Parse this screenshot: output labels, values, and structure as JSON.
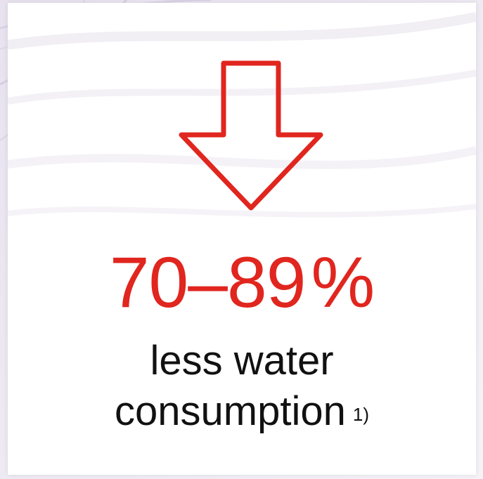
{
  "colors": {
    "accent": "#e0261e",
    "text": "#111111",
    "background": "#ffffff"
  },
  "icon": "arrow-down-outline-icon",
  "figure": {
    "range_from": "70",
    "dash": "–",
    "range_to": "89",
    "unit": "%"
  },
  "caption": {
    "line1": "less water",
    "line2": "consumption",
    "footnote": "1)"
  }
}
